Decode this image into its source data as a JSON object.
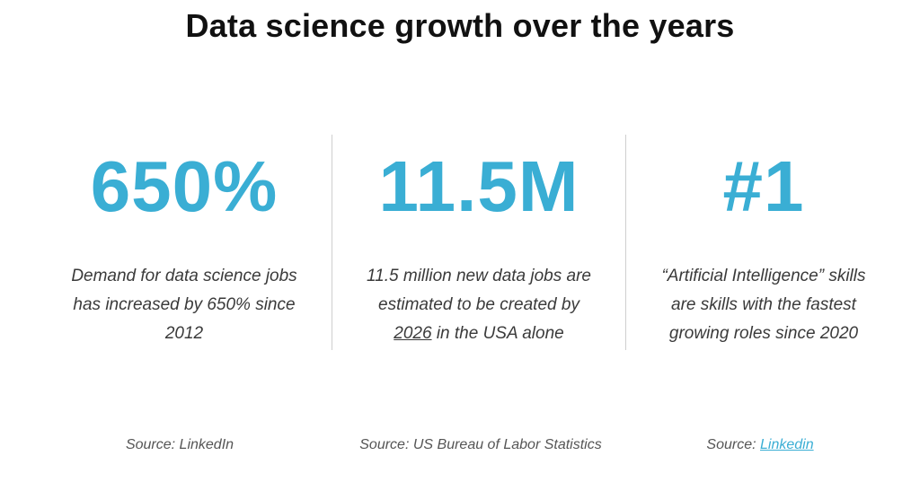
{
  "title": "Data science growth over the years",
  "colors": {
    "accent": "#3aaed4",
    "text": "#333333",
    "divider": "#cfcfcf"
  },
  "columns": [
    {
      "stat": "650%",
      "desc_line1": "Demand for data science jobs",
      "desc_line2": "has increased by 650% since",
      "desc_line3": "2012",
      "source_prefix": "Source: ",
      "source_name": "LinkedIn"
    },
    {
      "stat": "11.5M",
      "desc_line1": "11.5 million new data jobs are",
      "desc_line2": "estimated to be created by",
      "desc_line3_underlined": "2026",
      "desc_line3_rest": " in the USA alone",
      "source_prefix": "Source: ",
      "source_name": "US Bureau of Labor Statistics"
    },
    {
      "stat": "#1",
      "desc_line1": "“Artificial Intelligence” skills",
      "desc_line2": "are skills with the fastest",
      "desc_line3": "growing roles since 2020",
      "source_prefix": "Source: ",
      "source_link": "Linkedin"
    }
  ]
}
